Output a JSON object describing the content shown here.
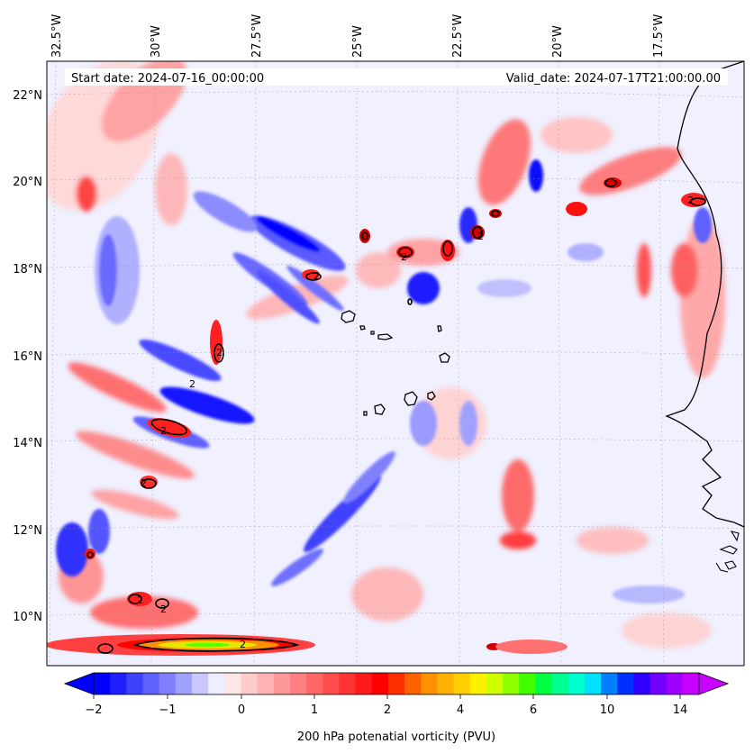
{
  "header": {
    "start_date": "Start date: 2024-07-16_00:00:00",
    "valid_date": "Valid_date: 2024-07-17T21:00:00.00"
  },
  "axes": {
    "lon_labels": [
      "32.5°W",
      "30°W",
      "27.5°W",
      "25°W",
      "22.5°W",
      "20°W",
      "17.5°W"
    ],
    "lat_labels": [
      "22°N",
      "20°N",
      "18°N",
      "16°N",
      "14°N",
      "12°N",
      "10°N"
    ]
  },
  "colorbar": {
    "title": "200 hPa potenatial vorticity (PVU)",
    "tick_labels": [
      "−2",
      "−1",
      "0",
      "1",
      "2",
      "4",
      "6",
      "10",
      "14"
    ],
    "colors": [
      "#0000ff",
      "#2020ff",
      "#4040ff",
      "#6060ff",
      "#8080ff",
      "#a0a0ff",
      "#c8c8ff",
      "#eeeeff",
      "#ffe6e6",
      "#ffcccc",
      "#ffb3b3",
      "#ff9999",
      "#ff8080",
      "#ff6666",
      "#ff4d4d",
      "#ff3333",
      "#ff1a1a",
      "#ff0000",
      "#ff3000",
      "#ff6000",
      "#ff9000",
      "#ffb000",
      "#ffd000",
      "#fff000",
      "#d0ff00",
      "#90ff00",
      "#40ff00",
      "#00ff40",
      "#00ff90",
      "#00ffd0",
      "#00e0ff",
      "#0080ff",
      "#0030ff",
      "#3000ff",
      "#7000ff",
      "#a000ff",
      "#c800ff"
    ]
  },
  "contour_labels": [
    "2",
    "2",
    "2",
    "2",
    "2",
    "2",
    "2",
    "2",
    "2",
    "2",
    "2"
  ]
}
